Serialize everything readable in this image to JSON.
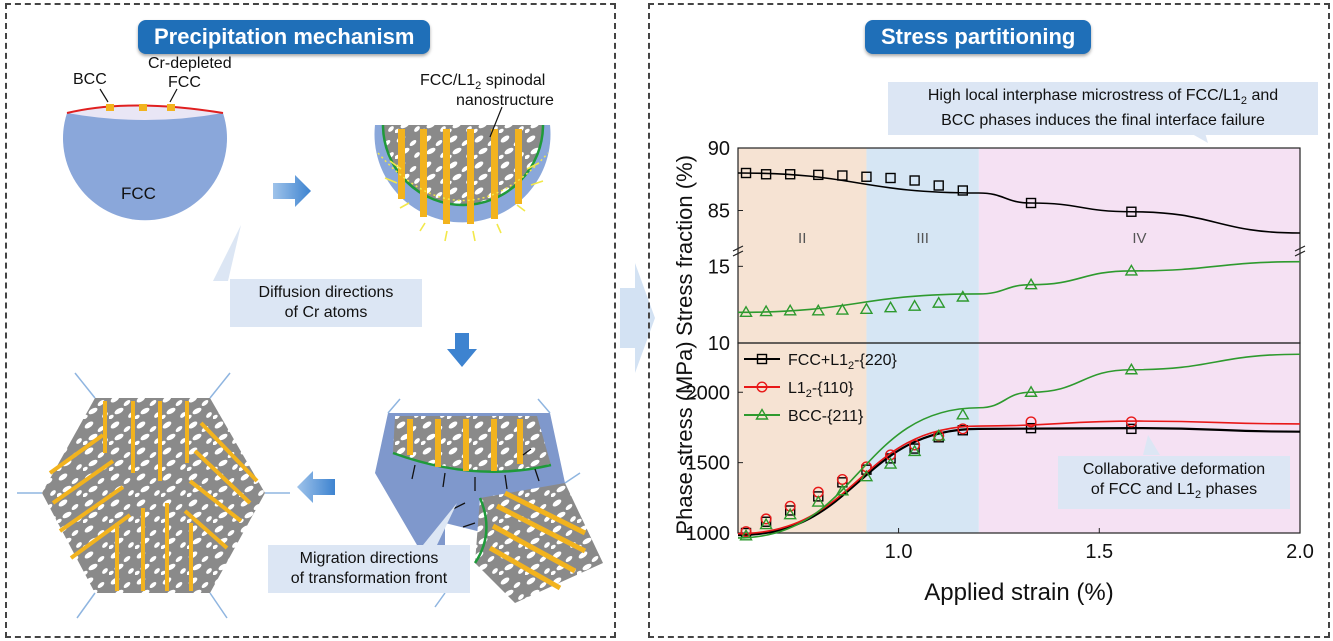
{
  "left_panel": {
    "title": "Precipitation mechanism",
    "label_bcc": "BCC",
    "label_cr_depleted_1": "Cr-depleted",
    "label_cr_depleted_2": "FCC",
    "label_fcc": "FCC",
    "label_spinodal_1_a": "FCC/L1",
    "label_spinodal_1_sub": "2",
    "label_spinodal_1_b": " spinodal",
    "label_spinodal_2": "nanostructure",
    "callout_diffusion": [
      "Diffusion directions",
      "of Cr atoms"
    ],
    "callout_migration": [
      "Migration directions",
      "of transformation front"
    ]
  },
  "right_panel": {
    "title": "Stress partitioning",
    "callout_microstress_line1_a": "High local interphase microstress of FCC/L1",
    "callout_microstress_line1_sub": "2",
    "callout_microstress_line1_b": " and",
    "callout_microstress_line2": "BCC phases induces the final interface failure",
    "callout_collab_line1": "Collaborative deformation",
    "callout_collab_line2_a": "of FCC and L1",
    "callout_collab_line2_sub": "2",
    "callout_collab_line2_b": " phases"
  },
  "chart_data": {
    "type": "line",
    "xlabel": "Applied strain (%)",
    "xlim": [
      0.6,
      2.0
    ],
    "xticks": [
      "1.0",
      "1.5",
      "2.0"
    ],
    "regions": [
      {
        "label": "II",
        "from": 0.6,
        "to": 0.92,
        "color": "#f6e3d3"
      },
      {
        "label": "III",
        "from": 0.92,
        "to": 1.2,
        "color": "#d6e6f4"
      },
      {
        "label": "IV",
        "from": 1.2,
        "to": 2.0,
        "color": "#f5e1f3"
      }
    ],
    "top": {
      "ylabel": "Stress fraction (%)",
      "upper_ylim": [
        82,
        90
      ],
      "upper_ticks": [
        "90",
        "85"
      ],
      "lower_ylim": [
        10,
        16
      ],
      "lower_ticks": [
        "15",
        "10"
      ],
      "series": [
        {
          "name": "FCC+L1₂-{220}",
          "color": "#000000",
          "marker": "square",
          "x": [
            0.62,
            0.67,
            0.73,
            0.8,
            0.86,
            0.92,
            0.98,
            1.04,
            1.1,
            1.16,
            1.33,
            1.58
          ],
          "y": [
            88.0,
            87.9,
            87.9,
            87.85,
            87.8,
            87.7,
            87.6,
            87.4,
            87.0,
            86.6,
            85.6,
            84.9
          ],
          "line_x": [
            0.6,
            1.2,
            1.33,
            1.58,
            2.0
          ],
          "line_y": [
            88.0,
            86.4,
            85.6,
            84.9,
            83.2
          ]
        },
        {
          "name": "BCC-{211}",
          "color": "#2e9a2e",
          "marker": "triangle",
          "x": [
            0.62,
            0.67,
            0.73,
            0.8,
            0.86,
            0.92,
            0.98,
            1.04,
            1.1,
            1.16,
            1.33,
            1.58
          ],
          "y": [
            12.0,
            12.05,
            12.1,
            12.1,
            12.15,
            12.2,
            12.3,
            12.4,
            12.6,
            13.0,
            13.8,
            14.7
          ],
          "line_x": [
            0.6,
            1.2,
            1.33,
            1.58,
            2.0
          ],
          "line_y": [
            12.0,
            13.2,
            13.8,
            14.7,
            15.3
          ]
        }
      ]
    },
    "bottom": {
      "ylabel": "Phase stress (MPa)",
      "ylim": [
        1000,
        2350
      ],
      "yticks": [
        "2000",
        "1500",
        "1000"
      ],
      "legend": [
        {
          "name_a": "FCC+L1",
          "name_sub": "2",
          "name_b": "-{220}",
          "color": "#000000",
          "marker": "square"
        },
        {
          "name_a": "L1",
          "name_sub": "2",
          "name_b": "-{110}",
          "color": "#e81818",
          "marker": "circle"
        },
        {
          "name_a": "BCC-{211}",
          "name_sub": "",
          "name_b": "",
          "color": "#2e9a2e",
          "marker": "triangle"
        }
      ],
      "series": [
        {
          "name": "FCC+L1₂-{220}",
          "color": "#000000",
          "marker": "square",
          "x": [
            0.62,
            0.67,
            0.73,
            0.8,
            0.86,
            0.92,
            0.98,
            1.04,
            1.1,
            1.16,
            1.33,
            1.58
          ],
          "y": [
            1000,
            1080,
            1160,
            1260,
            1360,
            1450,
            1530,
            1600,
            1680,
            1730,
            1745,
            1740
          ]
        },
        {
          "name": "L1₂-{110}",
          "color": "#e81818",
          "marker": "circle",
          "x": [
            0.62,
            0.67,
            0.73,
            0.8,
            0.86,
            0.92,
            0.98,
            1.04,
            1.1,
            1.16,
            1.33,
            1.58
          ],
          "y": [
            1010,
            1100,
            1190,
            1290,
            1380,
            1470,
            1555,
            1625,
            1690,
            1740,
            1790,
            1790
          ]
        },
        {
          "name": "BCC-{211}",
          "color": "#2e9a2e",
          "marker": "triangle",
          "x": [
            0.62,
            0.67,
            0.73,
            0.8,
            0.86,
            0.92,
            0.98,
            1.04,
            1.1,
            1.16,
            1.33,
            1.58
          ],
          "y": [
            980,
            1060,
            1130,
            1220,
            1300,
            1400,
            1490,
            1580,
            1690,
            1840,
            2000,
            2160
          ]
        }
      ],
      "line_fits": {
        "FCC+L1₂-{220}": {
          "x": [
            0.6,
            1.2,
            1.6,
            2.0
          ],
          "y": [
            985,
            1740,
            1745,
            1720
          ]
        },
        "L1₂-{110}": {
          "x": [
            0.6,
            1.2,
            1.6,
            2.0
          ],
          "y": [
            995,
            1760,
            1795,
            1775
          ]
        },
        "BCC-{211}": {
          "x": [
            0.6,
            1.2,
            1.33,
            1.58,
            2.0
          ],
          "y": [
            965,
            1890,
            2000,
            2160,
            2270
          ]
        }
      }
    }
  }
}
